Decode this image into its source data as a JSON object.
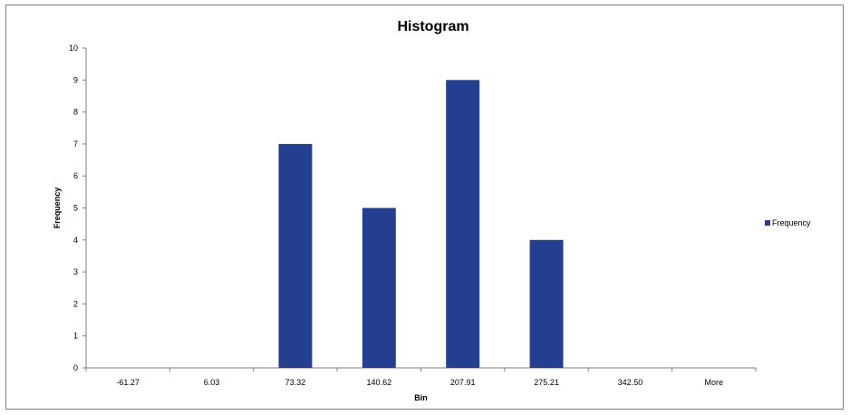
{
  "chart_data": {
    "type": "bar",
    "title": "Histogram",
    "xlabel": "Bin",
    "ylabel": "Frequency",
    "categories": [
      "-61.27",
      "6.03",
      "73.32",
      "140.62",
      "207.91",
      "275.21",
      "342.50",
      "More"
    ],
    "series": [
      {
        "name": "Frequency",
        "values": [
          0,
          0,
          7,
          5,
          9,
          4,
          0,
          0
        ],
        "color": "#243f8f"
      }
    ],
    "ylim": [
      0,
      10
    ],
    "yticks": [
      0,
      1,
      2,
      3,
      4,
      5,
      6,
      7,
      8,
      9,
      10
    ],
    "grid": false,
    "legend_position": "right"
  }
}
